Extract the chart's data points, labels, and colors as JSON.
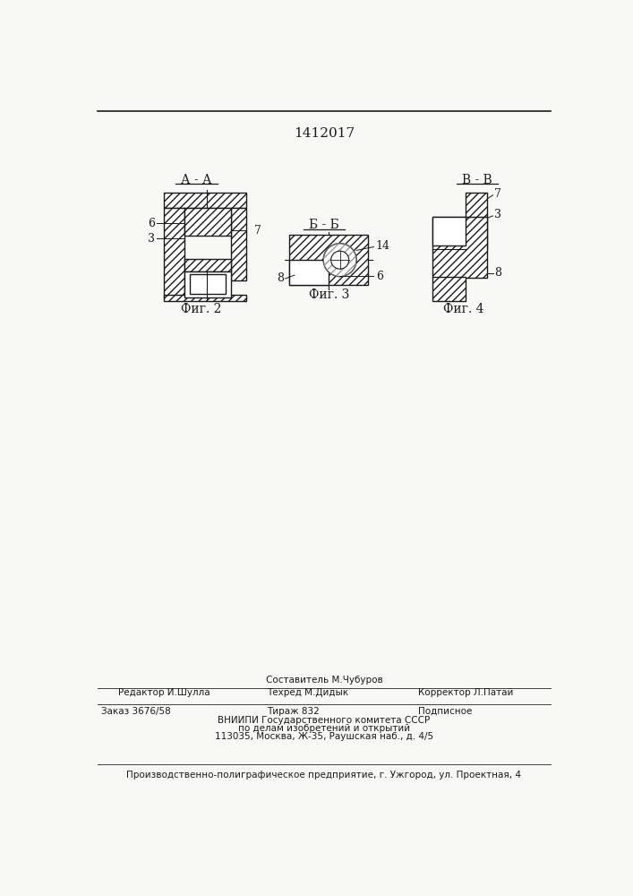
{
  "patent_number": "1412017",
  "bg_color": "#f8f8f5",
  "section_label_AA": "А - А",
  "section_label_VV": "В - В",
  "section_label_BB": "Б - Б",
  "fig2_label": "Фиг. 2",
  "fig3_label": "Фиг. 3",
  "fig4_label": "Фиг. 4",
  "line_color": "#1a1a1a",
  "hatch_lw": 0.5
}
